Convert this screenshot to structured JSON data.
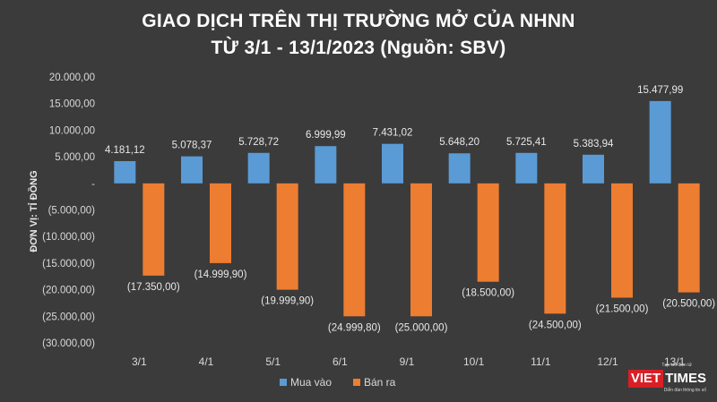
{
  "title_line1": "GIAO DỊCH TRÊN THỊ TRƯỜNG MỞ CỦA NHNN",
  "title_line2": "TỪ 3/1 - 13/1/2023 (Nguồn: SBV)",
  "logo": {
    "tagline_top": "Tạp chí điện tử",
    "brand_red": "VIET",
    "brand_white": "TIMES",
    "tagline_bottom": "Diễn đàn thông tin số"
  },
  "chart_data": {
    "type": "bar",
    "title": "GIAO DỊCH TRÊN THỊ TRƯỜNG MỞ CỦA NHNN TỪ 3/1 - 13/1/2023 (Nguồn: SBV)",
    "xlabel": "",
    "ylabel": "ĐƠN VỊ: TỈ ĐỒNG",
    "categories": [
      "3/1",
      "4/1",
      "5/1",
      "6/1",
      "9/1",
      "10/1",
      "11/1",
      "12/1",
      "13/1"
    ],
    "series": [
      {
        "name": "Mua vào",
        "color": "#5b9bd5",
        "values": [
          4181.12,
          5078.37,
          5728.72,
          6999.99,
          7431.02,
          5648.2,
          5725.41,
          5383.94,
          15477.99
        ],
        "labels": [
          "4.181,12",
          "5.078,37",
          "5.728,72",
          "6.999,99",
          "7.431,02",
          "5.648,20",
          "5.725,41",
          "5.383,94",
          "15.477,99"
        ]
      },
      {
        "name": "Bán ra",
        "color": "#ed7d31",
        "values": [
          -17350.0,
          -14999.9,
          -19999.9,
          -24999.8,
          -25000.0,
          -18500.0,
          -24500.0,
          -21500.0,
          -20500.0
        ],
        "labels": [
          "(17.350,00)",
          "(14.999,90)",
          "(19.999,90)",
          "(24.999,80)",
          "(25.000,00)",
          "(18.500,00)",
          "(24.500,00)",
          "(21.500,00)",
          "(20.500,00)"
        ]
      }
    ],
    "ylim": [
      -30000,
      20000
    ],
    "yticks": [
      20000,
      15000,
      10000,
      5000,
      0,
      -5000,
      -10000,
      -15000,
      -20000,
      -25000,
      -30000
    ],
    "ytick_labels": [
      "20.000,00",
      "15.000,00",
      "10.000,00",
      "5.000,00",
      "-",
      "(5.000,00)",
      "(10.000,00)",
      "(15.000,00)",
      "(20.000,00)",
      "(25.000,00)",
      "(30.000,00)"
    ],
    "grid": false,
    "legend": "bottom-center"
  }
}
